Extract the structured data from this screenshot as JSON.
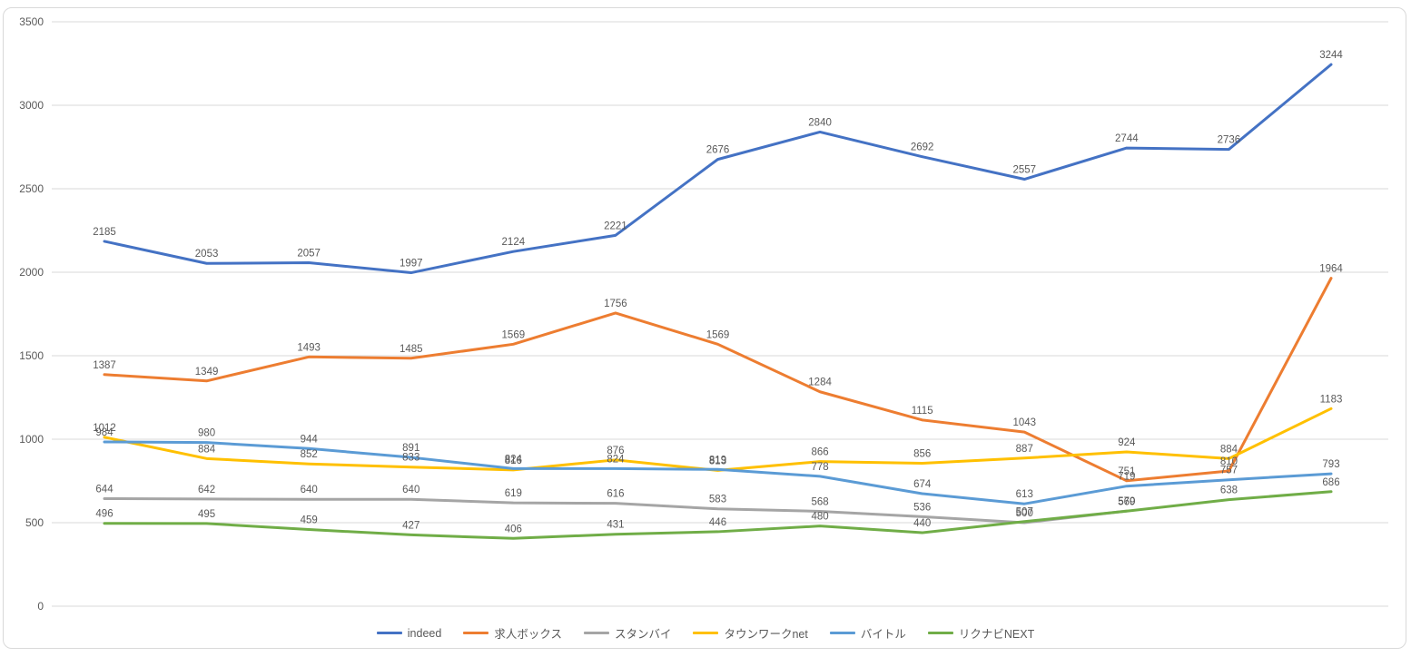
{
  "chart_data": {
    "type": "line",
    "title": "",
    "y_ticks": [
      0,
      500,
      1000,
      1500,
      2000,
      2500,
      3000,
      3500
    ],
    "ylim": [
      0,
      3500
    ],
    "grid": true,
    "data_labels": true,
    "legend_position": "bottom",
    "label_color": "#595959",
    "grid_color": "#d9d9d9",
    "num_points": 13,
    "series": [
      {
        "name": "indeed",
        "color": "#4472C4",
        "values": [
          2185,
          2053,
          2057,
          1997,
          2124,
          2221,
          2676,
          2840,
          2692,
          2557,
          2744,
          2736,
          3244
        ]
      },
      {
        "name": "求人ボックス",
        "color": "#ED7D31",
        "values": [
          1387,
          1349,
          1493,
          1485,
          1569,
          1756,
          1569,
          1284,
          1115,
          1043,
          751,
          810,
          1964
        ]
      },
      {
        "name": "スタンバイ",
        "color": "#A5A5A5",
        "values": [
          644,
          642,
          640,
          640,
          619,
          616,
          583,
          568,
          536,
          500,
          570,
          null,
          null
        ]
      },
      {
        "name": "タウンワークnet",
        "color": "#FFC000",
        "values": [
          1012,
          884,
          852,
          833,
          816,
          876,
          813,
          866,
          856,
          887,
          924,
          884,
          1183
        ]
      },
      {
        "name": "バイトル",
        "color": "#5B9BD5",
        "values": [
          984,
          980,
          944,
          891,
          824,
          824,
          819,
          778,
          674,
          613,
          719,
          757,
          793
        ]
      },
      {
        "name": "リクナビNEXT",
        "color": "#70AD47",
        "values": [
          496,
          495,
          459,
          427,
          406,
          431,
          446,
          480,
          440,
          507,
          569,
          638,
          686
        ]
      }
    ]
  }
}
